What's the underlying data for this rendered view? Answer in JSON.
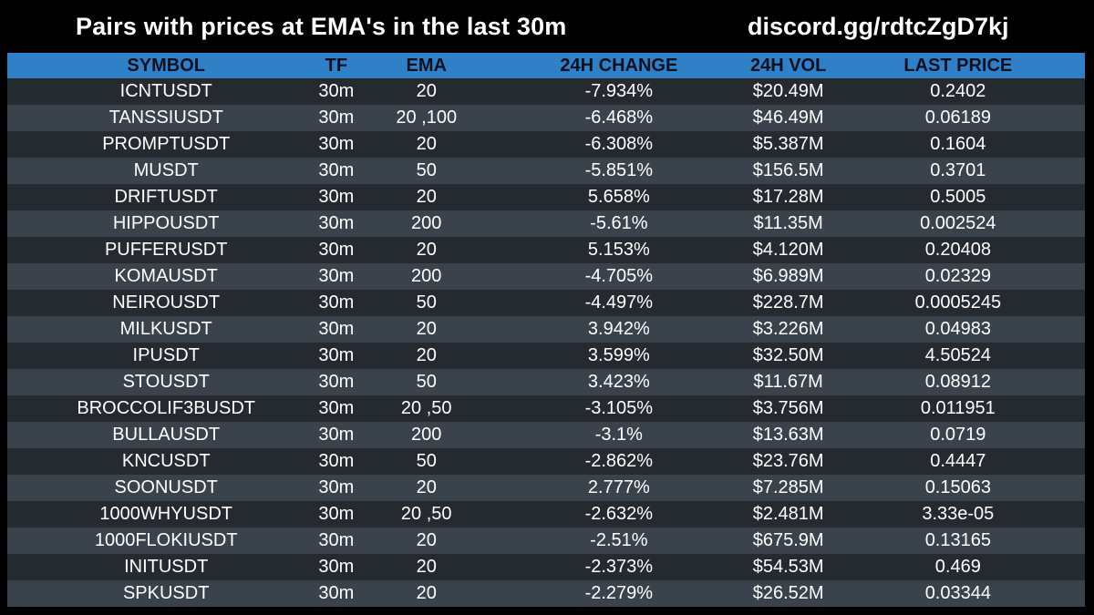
{
  "header": {
    "title": "Pairs with prices at EMA's in the last 30m",
    "link": "discord.gg/rdtcZgD7kj"
  },
  "colors": {
    "background": "#000000",
    "header_row": "#2f80c6",
    "row_dark": "#242a30",
    "row_light": "#3a434c",
    "text": "#ffffff"
  },
  "table": {
    "columns": [
      "SYMBOL",
      "TF",
      "EMA",
      "24H CHANGE",
      "24H VOL",
      "LAST PRICE"
    ],
    "rows": [
      [
        "ICNTUSDT",
        "30m",
        "20",
        "-7.934%",
        "$20.49M",
        "0.2402"
      ],
      [
        "TANSSIUSDT",
        "30m",
        "20 ,100",
        "-6.468%",
        "$46.49M",
        "0.06189"
      ],
      [
        "PROMPTUSDT",
        "30m",
        "20",
        "-6.308%",
        "$5.387M",
        "0.1604"
      ],
      [
        "MUSDT",
        "30m",
        "50",
        "-5.851%",
        "$156.5M",
        "0.3701"
      ],
      [
        "DRIFTUSDT",
        "30m",
        "20",
        "5.658%",
        "$17.28M",
        "0.5005"
      ],
      [
        "HIPPOUSDT",
        "30m",
        "200",
        "-5.61%",
        "$11.35M",
        "0.002524"
      ],
      [
        "PUFFERUSDT",
        "30m",
        "20",
        "5.153%",
        "$4.120M",
        "0.20408"
      ],
      [
        "KOMAUSDT",
        "30m",
        "200",
        "-4.705%",
        "$6.989M",
        "0.02329"
      ],
      [
        "NEIROUSDT",
        "30m",
        "50",
        "-4.497%",
        "$228.7M",
        "0.0005245"
      ],
      [
        "MILKUSDT",
        "30m",
        "20",
        "3.942%",
        "$3.226M",
        "0.04983"
      ],
      [
        "IPUSDT",
        "30m",
        "20",
        "3.599%",
        "$32.50M",
        "4.50524"
      ],
      [
        "STOUSDT",
        "30m",
        "50",
        "3.423%",
        "$11.67M",
        "0.08912"
      ],
      [
        "BROCCOLIF3BUSDT",
        "30m",
        "20 ,50",
        "-3.105%",
        "$3.756M",
        "0.011951"
      ],
      [
        "BULLAUSDT",
        "30m",
        "200",
        "-3.1%",
        "$13.63M",
        "0.0719"
      ],
      [
        "KNCUSDT",
        "30m",
        "50",
        "-2.862%",
        "$23.76M",
        "0.4447"
      ],
      [
        "SOONUSDT",
        "30m",
        "20",
        "2.777%",
        "$7.285M",
        "0.15063"
      ],
      [
        "1000WHYUSDT",
        "30m",
        "20 ,50",
        "-2.632%",
        "$2.481M",
        "3.33e-05"
      ],
      [
        "1000FLOKIUSDT",
        "30m",
        "20",
        "-2.51%",
        "$675.9M",
        "0.13165"
      ],
      [
        "INITUSDT",
        "30m",
        "20",
        "-2.373%",
        "$54.53M",
        "0.469"
      ],
      [
        "SPKUSDT",
        "30m",
        "20",
        "-2.279%",
        "$26.52M",
        "0.03344"
      ]
    ]
  }
}
